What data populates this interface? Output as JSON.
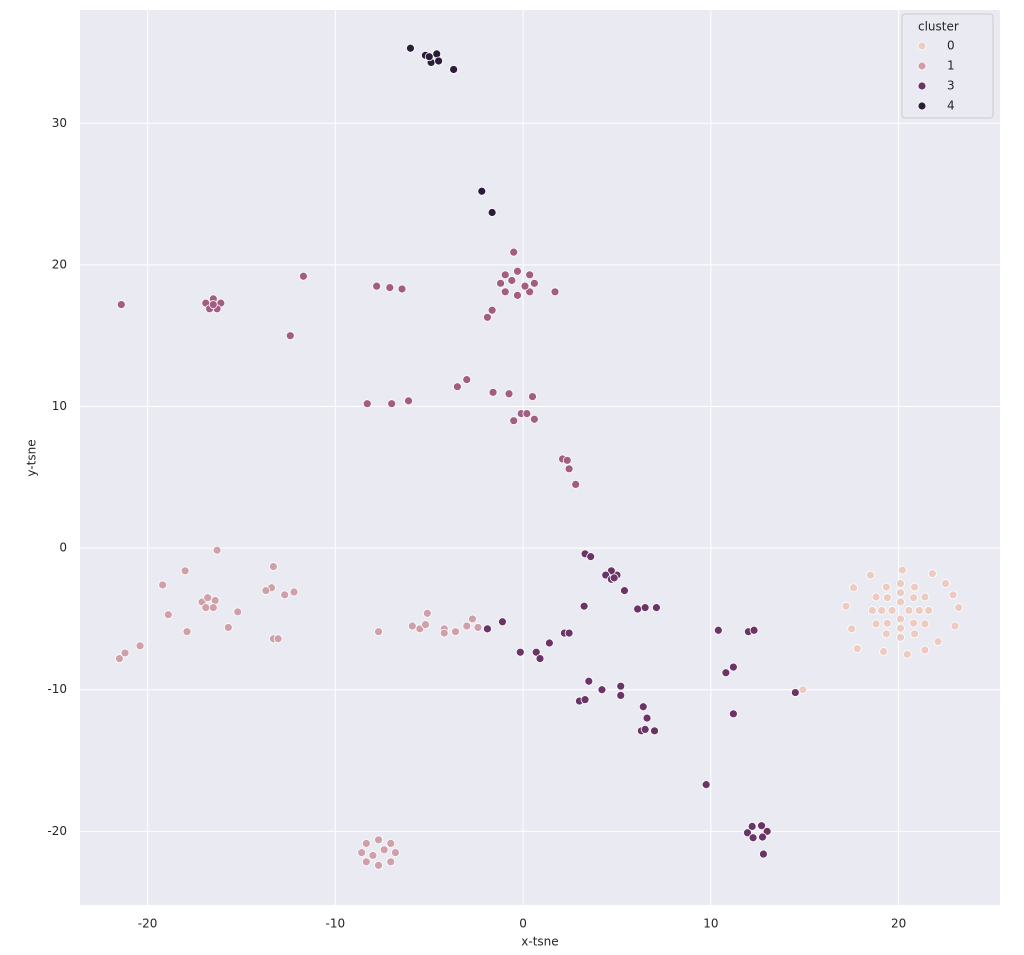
{
  "chart_data": {
    "type": "scatter",
    "xlabel": "x-tsne",
    "ylabel": "y-tsne",
    "legend_title": "cluster",
    "legend_position": "upper right",
    "grid": true,
    "xlim": [
      -23.6,
      25.4
    ],
    "ylim": [
      -25.2,
      38.0
    ],
    "xticks": [
      -20,
      -10,
      0,
      10,
      20
    ],
    "yticks": [
      -20,
      -10,
      0,
      10,
      20,
      30
    ],
    "series": [
      {
        "name": "0",
        "color": "#eccbc0",
        "x": [
          21.6,
          21.4,
          20.85,
          20.1,
          19.35,
          18.8,
          18.6,
          18.8,
          19.35,
          20.1,
          20.85,
          21.4,
          21.1,
          20.8,
          20.1,
          19.4,
          19.1,
          19.4,
          20.1,
          20.8,
          20.55,
          20.1,
          19.65,
          20.1,
          20.2,
          18.5,
          17.6,
          21.8,
          22.5,
          22.9,
          23.2,
          23.0,
          22.1,
          21.4,
          20.46,
          19.2,
          17.8,
          17.5,
          17.2,
          14.9
        ],
        "values": [
          -4.4,
          -3.45,
          -2.75,
          -2.5,
          -2.75,
          -3.45,
          -4.4,
          -5.35,
          -6.05,
          -6.3,
          -6.05,
          -5.35,
          -4.4,
          -3.5,
          -3.15,
          -3.5,
          -4.4,
          -5.3,
          -5.65,
          -5.3,
          -4.4,
          -3.8,
          -4.4,
          -5.0,
          -1.55,
          -1.9,
          -2.8,
          -1.8,
          -2.5,
          -3.3,
          -4.2,
          -5.5,
          -6.6,
          -7.2,
          -7.5,
          -7.3,
          -7.1,
          -5.7,
          -4.1,
          -10.0
        ]
      },
      {
        "name": "1",
        "color": "#d0a0a8",
        "x": [
          -16.3,
          -19.2,
          -18.0,
          -18.9,
          -17.9,
          -17.1,
          -16.8,
          -16.4,
          -16.5,
          -16.9,
          -15.7,
          -15.2,
          -13.3,
          -13.4,
          -13.7,
          -12.7,
          -12.2,
          -13.3,
          -13.05,
          -21.5,
          -21.2,
          -20.4,
          -7.7,
          -5.9,
          -5.5,
          -5.1,
          -5.2,
          -4.2,
          -4.2,
          -3.6,
          -3.0,
          -2.7,
          -2.4,
          -6.8,
          -7.05,
          -7.7,
          -8.35,
          -8.6,
          -8.35,
          -7.7,
          -7.05,
          -7.4,
          -8.0
        ],
        "values": [
          -0.15,
          -2.6,
          -1.6,
          -4.7,
          -5.9,
          -3.8,
          -3.5,
          -3.7,
          -4.2,
          -4.2,
          -5.6,
          -4.5,
          -1.3,
          -2.8,
          -3.0,
          -3.3,
          -3.1,
          -6.4,
          -6.4,
          -7.8,
          -7.4,
          -6.9,
          -5.9,
          -5.5,
          -5.7,
          -4.6,
          -5.4,
          -5.7,
          -6.0,
          -5.9,
          -5.5,
          -5.0,
          -5.6,
          -21.5,
          -20.85,
          -20.6,
          -20.85,
          -21.5,
          -22.15,
          -22.4,
          -22.15,
          -21.3,
          -21.7
        ]
      },
      {
        "color": "#a35c82",
        "x": [
          -21.4,
          -16.9,
          -16.5,
          -16.1,
          -16.3,
          -16.7,
          -16.5,
          -11.7,
          -12.4,
          -7.8,
          -7.1,
          -6.45,
          0.6,
          0.35,
          -0.3,
          -0.95,
          -1.2,
          -0.95,
          -0.3,
          0.35,
          0.1,
          -0.6,
          -0.5,
          1.7,
          -1.65,
          -1.9,
          -8.3,
          -7.0,
          -6.1,
          -3.5,
          -3.0,
          -1.6,
          -0.75,
          0.5,
          -0.5,
          -0.1,
          0.2,
          0.6,
          2.1,
          2.35,
          2.45,
          2.8
        ],
        "values": [
          17.2,
          17.3,
          17.6,
          17.3,
          16.9,
          16.9,
          17.2,
          19.2,
          15.0,
          18.5,
          18.4,
          18.3,
          18.7,
          19.3,
          19.55,
          19.3,
          18.7,
          18.1,
          17.85,
          18.1,
          18.5,
          18.9,
          20.9,
          18.1,
          16.8,
          16.3,
          10.2,
          10.2,
          10.4,
          11.4,
          11.9,
          11.0,
          10.9,
          10.7,
          9.0,
          9.5,
          9.5,
          9.1,
          6.3,
          6.2,
          5.6,
          4.5
        ]
      },
      {
        "name": "3",
        "color": "#6b3466",
        "x": [
          3.3,
          3.6,
          5.0,
          4.7,
          4.4,
          4.7,
          4.85,
          3.25,
          5.4,
          6.1,
          6.5,
          7.1,
          -1.1,
          -1.9,
          -0.15,
          0.7,
          0.9,
          1.4,
          2.2,
          2.45,
          3.5,
          4.2,
          5.2,
          5.2,
          3.0,
          3.3,
          6.4,
          6.6,
          6.3,
          7.0,
          6.5,
          10.4,
          10.8,
          11.2,
          11.2,
          12.0,
          12.3,
          9.75,
          13.0,
          12.7,
          12.2,
          11.95,
          12.25,
          12.75,
          12.8,
          14.5
        ],
        "values": [
          -0.4,
          -0.6,
          -1.9,
          -1.6,
          -1.9,
          -2.2,
          -2.1,
          -4.1,
          -3.0,
          -4.3,
          -4.2,
          -4.2,
          -5.2,
          -5.7,
          -7.35,
          -7.35,
          -7.8,
          -6.7,
          -6.0,
          -6.0,
          -9.4,
          -10.0,
          -9.75,
          -10.4,
          -10.8,
          -10.7,
          -11.2,
          -12.0,
          -12.9,
          -12.9,
          -12.8,
          -5.8,
          -8.8,
          -8.4,
          -11.7,
          -5.9,
          -5.8,
          -16.7,
          -20.0,
          -19.6,
          -19.65,
          -20.1,
          -20.45,
          -20.4,
          -21.6,
          -10.2
        ]
      },
      {
        "name": "4",
        "color": "#2b1c3b",
        "x": [
          -6.0,
          -5.2,
          -4.6,
          -4.9,
          -4.5,
          -5.0,
          -3.7,
          -2.2,
          -1.65
        ],
        "values": [
          35.3,
          34.8,
          34.9,
          34.3,
          34.4,
          34.7,
          33.8,
          25.2,
          23.7
        ]
      }
    ]
  }
}
